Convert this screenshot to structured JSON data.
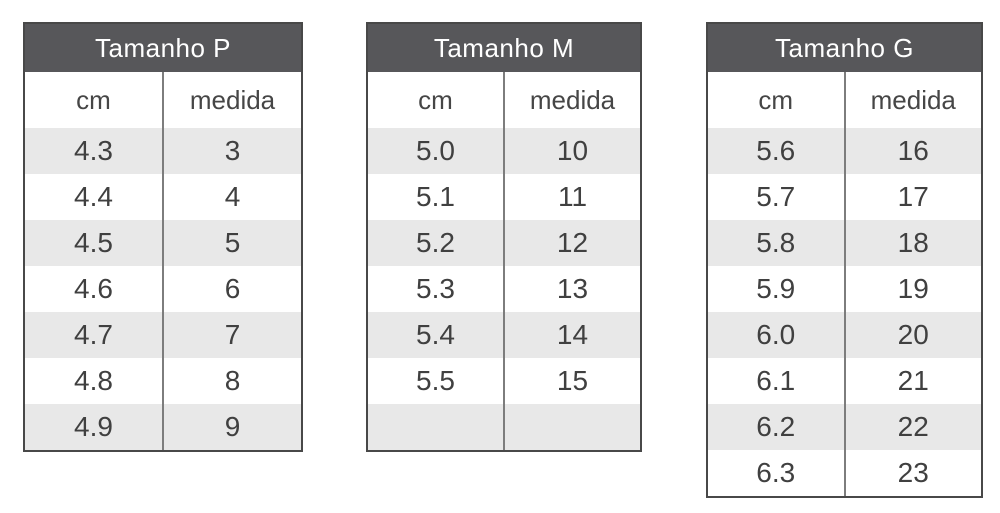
{
  "colors": {
    "title_bg": "#57575a",
    "title_text": "#ffffff",
    "stripe": "#e8e8e8",
    "outer_border": "#484848",
    "column_divider": "#7d7d7d",
    "cell_text": "#404040"
  },
  "chart_data": [
    {
      "type": "table",
      "title": "Tamanho P",
      "columns": [
        "cm",
        "medida"
      ],
      "rows": [
        {
          "cm": "4.3",
          "medida": "3"
        },
        {
          "cm": "4.4",
          "medida": "4"
        },
        {
          "cm": "4.5",
          "medida": "5"
        },
        {
          "cm": "4.6",
          "medida": "6"
        },
        {
          "cm": "4.7",
          "medida": "7"
        },
        {
          "cm": "4.8",
          "medida": "8"
        },
        {
          "cm": "4.9",
          "medida": "9"
        }
      ]
    },
    {
      "type": "table",
      "title": "Tamanho M",
      "columns": [
        "cm",
        "medida"
      ],
      "rows": [
        {
          "cm": "5.0",
          "medida": "10"
        },
        {
          "cm": "5.1",
          "medida": "11"
        },
        {
          "cm": "5.2",
          "medida": "12"
        },
        {
          "cm": "5.3",
          "medida": "13"
        },
        {
          "cm": "5.4",
          "medida": "14"
        },
        {
          "cm": "5.5",
          "medida": "15"
        },
        {
          "cm": "",
          "medida": ""
        }
      ]
    },
    {
      "type": "table",
      "title": "Tamanho G",
      "columns": [
        "cm",
        "medida"
      ],
      "rows": [
        {
          "cm": "5.6",
          "medida": "16"
        },
        {
          "cm": "5.7",
          "medida": "17"
        },
        {
          "cm": "5.8",
          "medida": "18"
        },
        {
          "cm": "5.9",
          "medida": "19"
        },
        {
          "cm": "6.0",
          "medida": "20"
        },
        {
          "cm": "6.1",
          "medida": "21"
        },
        {
          "cm": "6.2",
          "medida": "22"
        },
        {
          "cm": "6.3",
          "medida": "23"
        }
      ]
    }
  ]
}
